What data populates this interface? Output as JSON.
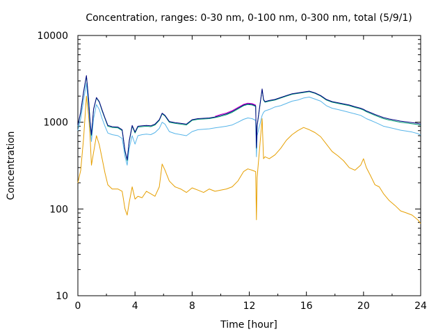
{
  "chart_data": {
    "type": "line",
    "title": "Concentration, ranges: 0-30 nm, 0-100 nm, 0-300 nm, total (5/9/1)",
    "xlabel": "Time [hour]",
    "ylabel": "Concentration",
    "xlim": [
      0,
      24
    ],
    "ylim": [
      10,
      10000
    ],
    "y_scale": "log",
    "x_ticks": [
      0,
      4,
      8,
      12,
      16,
      20,
      24
    ],
    "x_tick_labels": [
      "0",
      "4",
      "8",
      "12",
      "16",
      "20",
      "24"
    ],
    "y_ticks": [
      10,
      100,
      1000,
      10000
    ],
    "y_tick_labels": [
      "10",
      "100",
      "1000",
      "10000"
    ],
    "grid": false,
    "legend": "none",
    "series": [
      {
        "color": "#e69f00",
        "x": [
          0,
          0.2,
          0.4,
          0.6,
          0.75,
          0.85,
          0.95,
          1.1,
          1.3,
          1.5,
          1.7,
          1.9,
          2.1,
          2.4,
          2.8,
          3.1,
          3.3,
          3.45,
          3.6,
          3.8,
          4.0,
          4.2,
          4.5,
          4.8,
          5.1,
          5.4,
          5.7,
          5.9,
          6.1,
          6.4,
          6.8,
          7.2,
          7.6,
          8.0,
          8.4,
          8.8,
          9.2,
          9.6,
          10.0,
          10.4,
          10.8,
          11.2,
          11.6,
          11.9,
          12.2,
          12.45,
          12.5,
          12.55,
          12.9,
          13.0,
          13.1,
          13.4,
          13.8,
          14.2,
          14.6,
          15.0,
          15.4,
          15.8,
          16.2,
          16.6,
          17.0,
          17.4,
          17.8,
          18.2,
          18.6,
          19.0,
          19.4,
          19.8,
          20.0,
          20.2,
          20.5,
          20.8,
          21.1,
          21.4,
          21.8,
          22.2,
          22.6,
          23.0,
          23.4,
          23.8,
          24.0
        ],
        "y": [
          200,
          280,
          650,
          2000,
          1200,
          700,
          320,
          450,
          700,
          550,
          380,
          260,
          190,
          170,
          170,
          160,
          100,
          85,
          120,
          180,
          130,
          140,
          135,
          160,
          150,
          140,
          180,
          330,
          280,
          210,
          180,
          170,
          155,
          175,
          165,
          155,
          170,
          160,
          165,
          170,
          180,
          210,
          270,
          290,
          280,
          270,
          75,
          230,
          1100,
          380,
          400,
          380,
          420,
          500,
          620,
          720,
          800,
          870,
          820,
          760,
          680,
          560,
          460,
          410,
          360,
          300,
          280,
          320,
          380,
          300,
          240,
          190,
          180,
          150,
          125,
          110,
          95,
          90,
          85,
          75,
          68
        ]
      },
      {
        "color": "#56b4e9",
        "x": [
          0,
          0.2,
          0.4,
          0.6,
          0.75,
          0.85,
          0.95,
          1.1,
          1.3,
          1.5,
          1.7,
          1.9,
          2.1,
          2.4,
          2.8,
          3.1,
          3.3,
          3.45,
          3.6,
          3.8,
          4.0,
          4.2,
          4.5,
          4.8,
          5.1,
          5.4,
          5.7,
          5.9,
          6.1,
          6.4,
          6.8,
          7.2,
          7.6,
          8.0,
          8.4,
          8.8,
          9.2,
          9.6,
          10.0,
          10.4,
          10.8,
          11.2,
          11.6,
          11.9,
          12.2,
          12.45,
          12.5,
          12.55,
          12.9,
          13.0,
          13.1,
          13.4,
          13.8,
          14.2,
          14.6,
          15.0,
          15.4,
          15.8,
          16.2,
          16.6,
          17.0,
          17.4,
          17.8,
          18.2,
          18.6,
          19.0,
          19.4,
          19.8,
          20.0,
          20.2,
          20.5,
          20.8,
          21.1,
          21.4,
          21.8,
          22.2,
          22.6,
          23.0,
          23.4,
          23.8,
          24.0
        ],
        "y": [
          800,
          1100,
          1800,
          2800,
          1500,
          900,
          600,
          1100,
          1600,
          1400,
          1100,
          900,
          750,
          720,
          700,
          650,
          400,
          320,
          500,
          700,
          560,
          700,
          720,
          730,
          720,
          760,
          850,
          1000,
          950,
          780,
          740,
          720,
          700,
          780,
          820,
          830,
          840,
          860,
          880,
          900,
          930,
          1000,
          1080,
          1120,
          1100,
          1050,
          400,
          700,
          1200,
          1300,
          1350,
          1400,
          1500,
          1550,
          1650,
          1750,
          1800,
          1900,
          1950,
          1850,
          1750,
          1550,
          1450,
          1400,
          1350,
          1300,
          1250,
          1200,
          1150,
          1100,
          1050,
          1000,
          950,
          900,
          870,
          840,
          810,
          790,
          770,
          740,
          710
        ]
      },
      {
        "color": "#009e73",
        "x": [
          0,
          0.2,
          0.4,
          0.6,
          0.75,
          0.85,
          0.95,
          1.1,
          1.3,
          1.5,
          1.7,
          1.9,
          2.1,
          2.4,
          2.8,
          3.1,
          3.3,
          3.45,
          3.6,
          3.8,
          4.0,
          4.2,
          4.5,
          4.8,
          5.1,
          5.4,
          5.7,
          5.9,
          6.1,
          6.4,
          6.8,
          7.2,
          7.6,
          8.0,
          8.4,
          8.8,
          9.2,
          9.6,
          10.0,
          10.4,
          10.8,
          11.2,
          11.6,
          11.9,
          12.2,
          12.45,
          12.5,
          12.55,
          12.9,
          13.0,
          13.1,
          13.4,
          13.8,
          14.2,
          14.6,
          15.0,
          15.4,
          15.8,
          16.2,
          16.6,
          17.0,
          17.4,
          17.8,
          18.2,
          18.6,
          19.0,
          19.4,
          19.8,
          20.0,
          20.2,
          20.5,
          20.8,
          21.1,
          21.4,
          21.8,
          22.2,
          22.6,
          23.0,
          23.4,
          23.8,
          24.0
        ],
        "y": [
          900,
          1300,
          2200,
          3400,
          1800,
          1000,
          700,
          1400,
          1900,
          1700,
          1350,
          1100,
          900,
          870,
          860,
          800,
          460,
          360,
          600,
          900,
          750,
          880,
          890,
          900,
          890,
          930,
          1050,
          1250,
          1180,
          1000,
          970,
          950,
          930,
          1050,
          1080,
          1090,
          1100,
          1130,
          1170,
          1220,
          1300,
          1420,
          1550,
          1600,
          1580,
          1520,
          500,
          900,
          2400,
          1800,
          1700,
          1750,
          1800,
          1900,
          2000,
          2100,
          2150,
          2200,
          2250,
          2150,
          2000,
          1800,
          1700,
          1650,
          1600,
          1550,
          1480,
          1420,
          1380,
          1320,
          1260,
          1200,
          1150,
          1100,
          1060,
          1030,
          1000,
          980,
          960,
          940,
          920
        ]
      },
      {
        "color": "#000080",
        "x": [
          0,
          0.2,
          0.4,
          0.6,
          0.75,
          0.85,
          0.95,
          1.1,
          1.3,
          1.5,
          1.7,
          1.9,
          2.1,
          2.4,
          2.8,
          3.1,
          3.3,
          3.45,
          3.6,
          3.8,
          4.0,
          4.2,
          4.5,
          4.8,
          5.1,
          5.4,
          5.7,
          5.9,
          6.1,
          6.4,
          6.8,
          7.2,
          7.6,
          8.0,
          8.4,
          8.8,
          9.2,
          9.6,
          10.0,
          10.4,
          10.8,
          11.2,
          11.6,
          11.9,
          12.2,
          12.45,
          12.5,
          12.55,
          12.9,
          13.0,
          13.1,
          13.4,
          13.8,
          14.2,
          14.6,
          15.0,
          15.4,
          15.8,
          16.2,
          16.6,
          17.0,
          17.4,
          17.8,
          18.2,
          18.6,
          19.0,
          19.4,
          19.8,
          20.0,
          20.2,
          20.5,
          20.8,
          21.1,
          21.4,
          21.8,
          22.2,
          22.6,
          23.0,
          23.4,
          23.8,
          24.0
        ],
        "y": [
          920,
          1330,
          2250,
          3450,
          1850,
          1020,
          720,
          1420,
          1930,
          1730,
          1380,
          1120,
          920,
          890,
          880,
          820,
          470,
          370,
          615,
          920,
          770,
          900,
          910,
          920,
          910,
          950,
          1070,
          1270,
          1200,
          1020,
          990,
          970,
          950,
          1070,
          1100,
          1110,
          1120,
          1150,
          1200,
          1250,
          1330,
          1450,
          1580,
          1630,
          1610,
          1550,
          510,
          920,
          2420,
          1830,
          1730,
          1780,
          1830,
          1930,
          2030,
          2130,
          2180,
          2230,
          2280,
          2180,
          2030,
          1830,
          1730,
          1680,
          1630,
          1580,
          1510,
          1450,
          1410,
          1350,
          1290,
          1230,
          1180,
          1130,
          1090,
          1060,
          1030,
          1010,
          990,
          970,
          950
        ]
      },
      {
        "color": "#cc00cc",
        "x": [
          9.6,
          10.0,
          10.4,
          10.8,
          11.2,
          11.6,
          11.9,
          12.2,
          12.45
        ],
        "y": [
          1170,
          1230,
          1280,
          1360,
          1480,
          1610,
          1660,
          1640,
          1580
        ]
      }
    ]
  }
}
